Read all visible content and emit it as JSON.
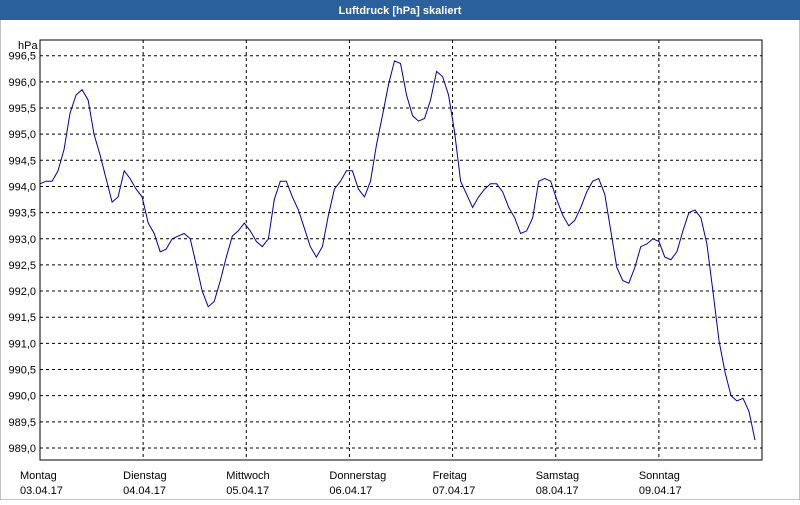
{
  "chart_data": {
    "type": "line",
    "title": "Luftdruck [hPa] skaliert",
    "ylabel": "hPa",
    "grid": true,
    "xlim": [
      0,
      7
    ],
    "xticks": [
      {
        "value": 0,
        "label": "Montag",
        "date": "03.04.17"
      },
      {
        "value": 1,
        "label": "Dienstag",
        "date": "04.04.17"
      },
      {
        "value": 2,
        "label": "Mittwoch",
        "date": "05.04.17"
      },
      {
        "value": 3,
        "label": "Donnerstag",
        "date": "06.04.17"
      },
      {
        "value": 4,
        "label": "Freitag",
        "date": "07.04.17"
      },
      {
        "value": 5,
        "label": "Samstag",
        "date": "08.04.17"
      },
      {
        "value": 6,
        "label": "Sonntag",
        "date": "09.04.17"
      }
    ],
    "ylim": [
      988.77,
      996.8
    ],
    "yticks": [
      {
        "value": 989,
        "label": "989,0"
      },
      {
        "value": 989.5,
        "label": "989,5"
      },
      {
        "value": 990,
        "label": "990,0"
      },
      {
        "value": 990.5,
        "label": "990,5"
      },
      {
        "value": 991,
        "label": "991,0"
      },
      {
        "value": 991.5,
        "label": "991,5"
      },
      {
        "value": 992,
        "label": "992,0"
      },
      {
        "value": 992.5,
        "label": "992,5"
      },
      {
        "value": 993,
        "label": "993,0"
      },
      {
        "value": 993.5,
        "label": "993,5"
      },
      {
        "value": 994,
        "label": "994,0"
      },
      {
        "value": 994.5,
        "label": "994,5"
      },
      {
        "value": 995,
        "label": "995,0"
      },
      {
        "value": 995.5,
        "label": "995,5"
      },
      {
        "value": 996,
        "label": "996,0"
      },
      {
        "value": 996.5,
        "label": "996,5"
      }
    ],
    "x": [
      0,
      0.058,
      0.117,
      0.175,
      0.233,
      0.291,
      0.35,
      0.408,
      0.466,
      0.524,
      0.583,
      0.641,
      0.699,
      0.757,
      0.816,
      0.874,
      0.932,
      0.99,
      1.049,
      1.107,
      1.165,
      1.223,
      1.282,
      1.34,
      1.398,
      1.456,
      1.515,
      1.573,
      1.631,
      1.689,
      1.748,
      1.806,
      1.864,
      1.922,
      1.981,
      2.039,
      2.097,
      2.155,
      2.214,
      2.272,
      2.33,
      2.388,
      2.447,
      2.505,
      2.563,
      2.621,
      2.68,
      2.738,
      2.796,
      2.854,
      2.913,
      2.971,
      3.029,
      3.087,
      3.146,
      3.204,
      3.262,
      3.32,
      3.379,
      3.437,
      3.495,
      3.553,
      3.612,
      3.67,
      3.728,
      3.786,
      3.845,
      3.903,
      3.961,
      4.019,
      4.078,
      4.136,
      4.194,
      4.252,
      4.311,
      4.369,
      4.427,
      4.485,
      4.544,
      4.602,
      4.66,
      4.718,
      4.777,
      4.835,
      4.893,
      4.951,
      5.01,
      5.068,
      5.126,
      5.184,
      5.243,
      5.301,
      5.359,
      5.417,
      5.476,
      5.534,
      5.592,
      5.65,
      5.709,
      5.767,
      5.825,
      5.883,
      5.942,
      6.0,
      6.058,
      6.117,
      6.175,
      6.233,
      6.291,
      6.35,
      6.408,
      6.466,
      6.524,
      6.583,
      6.641,
      6.699,
      6.757,
      6.816,
      6.874,
      6.932
    ],
    "series": [
      {
        "color": "#0000a8",
        "values": [
          994.05,
          994.1,
          994.1,
          994.3,
          994.7,
          995.4,
          995.75,
          995.85,
          995.65,
          995.0,
          994.6,
          994.15,
          993.7,
          993.8,
          994.3,
          994.15,
          993.95,
          993.8,
          993.3,
          993.1,
          992.75,
          992.8,
          993.0,
          993.05,
          993.1,
          993.0,
          992.5,
          992.0,
          991.7,
          991.8,
          992.2,
          992.65,
          993.05,
          993.15,
          993.3,
          993.15,
          992.95,
          992.85,
          993.0,
          993.75,
          994.1,
          994.1,
          993.8,
          993.55,
          993.2,
          992.85,
          992.65,
          992.85,
          993.45,
          993.95,
          994.1,
          994.3,
          994.3,
          993.95,
          993.8,
          994.1,
          994.8,
          995.35,
          995.95,
          996.4,
          996.35,
          995.75,
          995.35,
          995.25,
          995.3,
          995.65,
          996.2,
          996.1,
          995.75,
          995.05,
          994.1,
          993.85,
          993.6,
          993.8,
          993.95,
          994.05,
          994.05,
          993.9,
          993.6,
          993.4,
          993.1,
          993.15,
          993.4,
          994.1,
          994.15,
          994.1,
          993.75,
          993.45,
          993.25,
          993.35,
          993.6,
          993.9,
          994.1,
          994.15,
          993.85,
          993.15,
          992.45,
          992.2,
          992.15,
          992.45,
          992.85,
          992.9,
          993.0,
          992.95,
          992.65,
          992.6,
          992.75,
          993.15,
          993.5,
          993.55,
          993.4,
          992.9,
          992.0,
          991.05,
          990.45,
          990.0,
          989.9,
          989.95,
          989.7,
          989.15
        ]
      }
    ]
  }
}
